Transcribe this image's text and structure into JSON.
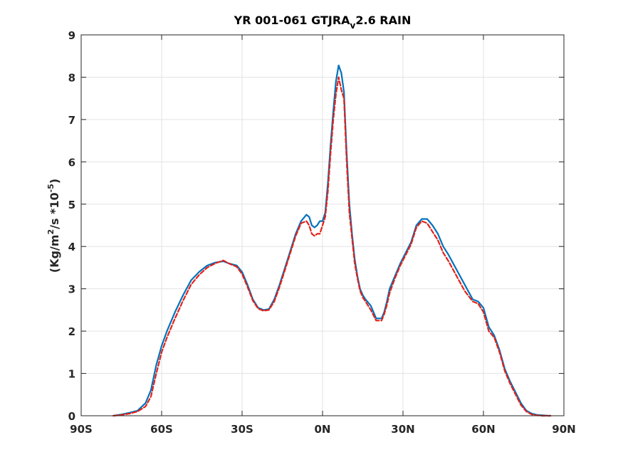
{
  "chart_data": {
    "type": "line",
    "title": {
      "main": "YR 001-061 GTJRA",
      "sub": "v",
      "tail": "2.6 RAIN"
    },
    "ylabel": {
      "prefix": "(Kg/m",
      "sup1": "2",
      "mid": "/s  *10",
      "sup2": "-5",
      "suffix": ")"
    },
    "xlabel": "",
    "xlim": [
      -90,
      90
    ],
    "ylim": [
      0,
      9
    ],
    "xticks": [
      -90,
      -60,
      -30,
      0,
      30,
      60,
      90
    ],
    "xtick_labels": [
      "90S",
      "60S",
      "30S",
      "0N",
      "30N",
      "60N",
      "90N"
    ],
    "yticks": [
      0,
      1,
      2,
      3,
      4,
      5,
      6,
      7,
      8,
      9
    ],
    "ytick_labels": [
      "0",
      "1",
      "2",
      "3",
      "4",
      "5",
      "6",
      "7",
      "8",
      "9"
    ],
    "grid": true,
    "colors": {
      "series1": "#0072BD",
      "series2": "#E2231A",
      "grid": "#e3e3e3",
      "axis": "#262626"
    },
    "series": [
      {
        "style": "solid",
        "color": "#0072BD",
        "x": [
          -78,
          -75,
          -72,
          -69,
          -66,
          -64,
          -62,
          -60,
          -58,
          -55,
          -52,
          -49,
          -46,
          -43,
          -40,
          -37,
          -35,
          -32,
          -30,
          -28,
          -26,
          -24,
          -22,
          -20,
          -18,
          -16,
          -14,
          -12,
          -10,
          -8,
          -6,
          -5,
          -4,
          -3,
          -2,
          -1,
          0,
          1,
          2,
          3,
          4,
          5,
          6,
          7,
          8,
          9,
          10,
          11,
          12,
          13,
          14,
          15,
          16,
          18,
          20,
          22,
          23,
          24,
          25,
          27,
          29,
          31,
          33,
          35,
          37,
          39,
          41,
          43,
          45,
          47,
          50,
          53,
          56,
          58,
          60,
          62,
          64,
          66,
          68,
          70,
          72,
          74,
          76,
          78,
          80,
          82,
          84,
          85
        ],
        "values": [
          0.0,
          0.03,
          0.07,
          0.12,
          0.3,
          0.6,
          1.2,
          1.65,
          2.0,
          2.45,
          2.85,
          3.2,
          3.4,
          3.55,
          3.62,
          3.65,
          3.6,
          3.55,
          3.4,
          3.1,
          2.75,
          2.55,
          2.5,
          2.52,
          2.75,
          3.1,
          3.5,
          3.9,
          4.3,
          4.6,
          4.75,
          4.7,
          4.5,
          4.45,
          4.5,
          4.6,
          4.6,
          4.8,
          5.5,
          6.4,
          7.2,
          7.9,
          8.28,
          8.1,
          7.65,
          6.2,
          5.0,
          4.3,
          3.7,
          3.3,
          3.0,
          2.85,
          2.75,
          2.6,
          2.3,
          2.3,
          2.45,
          2.7,
          3.0,
          3.3,
          3.6,
          3.85,
          4.1,
          4.5,
          4.65,
          4.65,
          4.5,
          4.3,
          4.0,
          3.8,
          3.45,
          3.1,
          2.75,
          2.7,
          2.55,
          2.1,
          1.9,
          1.55,
          1.1,
          0.8,
          0.55,
          0.3,
          0.12,
          0.05,
          0.02,
          0.01,
          0.0,
          0.0
        ]
      },
      {
        "style": "dashed",
        "color": "#E2231A",
        "x": [
          -78,
          -75,
          -72,
          -69,
          -66,
          -64,
          -62,
          -60,
          -58,
          -55,
          -52,
          -49,
          -46,
          -43,
          -40,
          -37,
          -35,
          -32,
          -30,
          -28,
          -26,
          -24,
          -22,
          -20,
          -18,
          -16,
          -14,
          -12,
          -10,
          -8,
          -6,
          -5,
          -4,
          -3,
          -2,
          -1,
          0,
          1,
          2,
          3,
          4,
          5,
          6,
          7,
          8,
          9,
          10,
          11,
          12,
          13,
          14,
          15,
          16,
          18,
          20,
          22,
          23,
          24,
          25,
          27,
          29,
          31,
          33,
          35,
          37,
          39,
          41,
          43,
          45,
          47,
          50,
          53,
          56,
          58,
          60,
          62,
          64,
          66,
          68,
          70,
          72,
          74,
          76,
          78,
          80,
          82,
          84,
          85
        ],
        "values": [
          0.0,
          0.02,
          0.05,
          0.1,
          0.22,
          0.45,
          1.0,
          1.5,
          1.85,
          2.3,
          2.72,
          3.1,
          3.33,
          3.5,
          3.6,
          3.67,
          3.6,
          3.52,
          3.35,
          3.05,
          2.72,
          2.53,
          2.48,
          2.5,
          2.7,
          3.05,
          3.45,
          3.85,
          4.25,
          4.55,
          4.6,
          4.5,
          4.3,
          4.25,
          4.3,
          4.3,
          4.5,
          4.7,
          5.3,
          6.2,
          7.0,
          7.6,
          8.0,
          7.7,
          7.5,
          6.0,
          4.8,
          4.2,
          3.6,
          3.25,
          2.95,
          2.8,
          2.7,
          2.5,
          2.25,
          2.25,
          2.4,
          2.62,
          2.9,
          3.25,
          3.55,
          3.8,
          4.05,
          4.45,
          4.6,
          4.55,
          4.35,
          4.15,
          3.85,
          3.65,
          3.3,
          2.95,
          2.7,
          2.65,
          2.45,
          2.0,
          1.85,
          1.5,
          1.05,
          0.75,
          0.5,
          0.25,
          0.1,
          0.03,
          0.01,
          0.0,
          0.0,
          0.0
        ]
      }
    ]
  }
}
